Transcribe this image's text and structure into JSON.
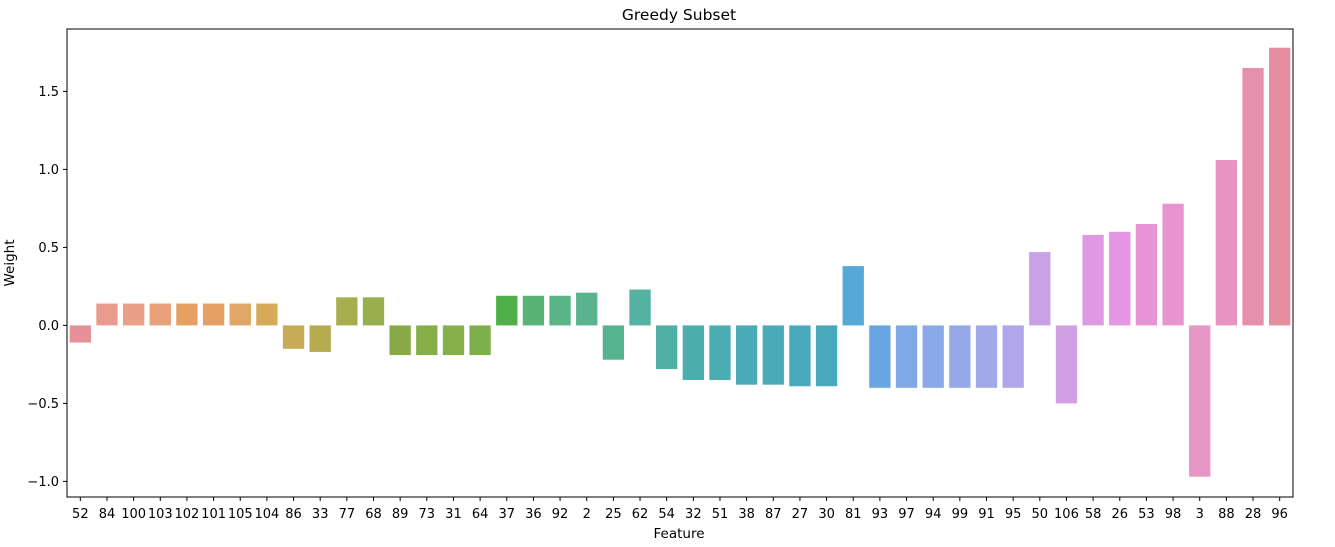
{
  "chart_data": {
    "type": "bar",
    "title": "Greedy Subset",
    "xlabel": "Feature",
    "ylabel": "Weight",
    "ylim": [
      -1.1,
      1.9
    ],
    "yticks": [
      -1.0,
      -0.5,
      0.0,
      0.5,
      1.0,
      1.5
    ],
    "ytick_labels": [
      "−1.0",
      "−0.5",
      "0.0",
      "0.5",
      "1.0",
      "1.5"
    ],
    "grid": false,
    "categories": [
      "52",
      "84",
      "100",
      "103",
      "102",
      "101",
      "105",
      "104",
      "86",
      "33",
      "77",
      "68",
      "89",
      "73",
      "31",
      "64",
      "37",
      "36",
      "92",
      "2",
      "25",
      "62",
      "54",
      "32",
      "51",
      "38",
      "87",
      "27",
      "30",
      "81",
      "93",
      "97",
      "94",
      "99",
      "91",
      "95",
      "50",
      "106",
      "58",
      "26",
      "53",
      "98",
      "3",
      "88",
      "28",
      "96"
    ],
    "values": [
      -0.11,
      0.14,
      0.14,
      0.14,
      0.14,
      0.14,
      0.14,
      0.14,
      -0.15,
      -0.17,
      0.18,
      0.18,
      -0.19,
      -0.19,
      -0.19,
      -0.19,
      0.19,
      0.19,
      0.19,
      0.21,
      -0.22,
      0.23,
      -0.28,
      -0.35,
      -0.35,
      -0.38,
      -0.38,
      -0.39,
      -0.39,
      0.38,
      -0.4,
      -0.4,
      -0.4,
      -0.4,
      -0.4,
      -0.4,
      0.47,
      -0.5,
      0.58,
      0.6,
      0.65,
      0.78,
      -0.97,
      1.06,
      1.65,
      1.78
    ],
    "colors": [
      "#e8909a",
      "#e99c8e",
      "#e9a087",
      "#e8a07a",
      "#e6a061",
      "#e6a064",
      "#dfa665",
      "#d6aa57",
      "#c8ab55",
      "#b7ab50",
      "#a6ae4d",
      "#97b04d",
      "#89a848",
      "#85ad48",
      "#86b049",
      "#7db04b",
      "#4fb04a",
      "#57b475",
      "#59b488",
      "#59b48e",
      "#56b390",
      "#54b2a2",
      "#4fb0a4",
      "#4daeae",
      "#4bacb1",
      "#4aaab5",
      "#4aaab7",
      "#49a9ba",
      "#4aa8bd",
      "#55a9d6",
      "#68a6e3",
      "#7ea8e6",
      "#8aa9e8",
      "#95a8e9",
      "#a1a8ea",
      "#b0a6e9",
      "#c9a2e6",
      "#d29fe6",
      "#df99e4",
      "#e496e2",
      "#e694d5",
      "#e695cf",
      "#e796c8",
      "#e794c0",
      "#e790ae",
      "#e58ea0"
    ]
  }
}
